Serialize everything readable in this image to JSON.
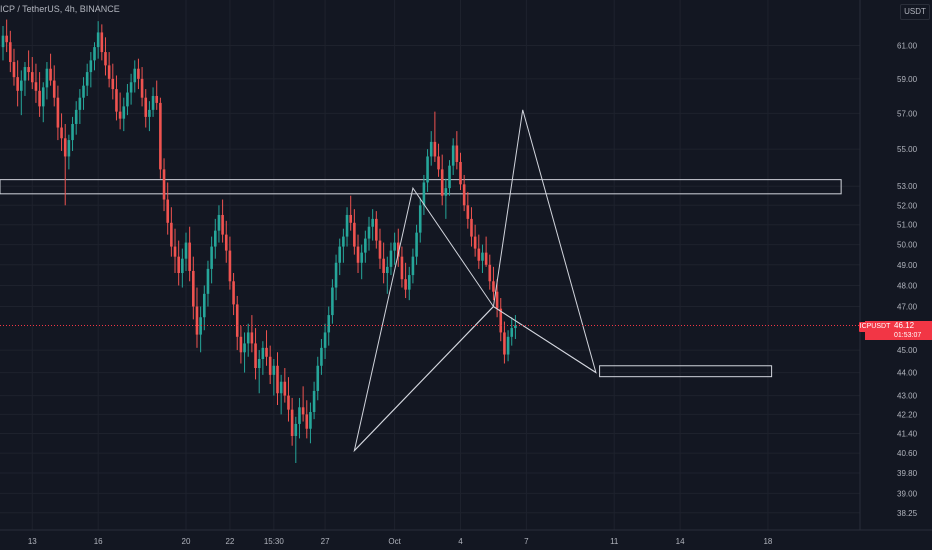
{
  "header": {
    "title": "ICP / TetherUS, 4h, BINANCE"
  },
  "axis_unit": "USDT",
  "colors": {
    "background": "#131722",
    "up": "#26a69a",
    "down": "#ef5350",
    "axis_text": "#b2b5be",
    "price_line": "#f23645",
    "drawing": "#d1d4dc"
  },
  "chart_data": {
    "type": "candlestick",
    "symbol": "ICPUSDT",
    "last_price": "46.12",
    "countdown": "01:53:07",
    "y_scale": "log",
    "ylim": [
      37.9,
      63.2
    ],
    "y_ticks": [
      "61.00",
      "59.00",
      "57.00",
      "55.00",
      "53.00",
      "52.00",
      "51.00",
      "50.00",
      "49.00",
      "48.00",
      "47.00",
      "45.00",
      "44.00",
      "43.00",
      "42.20",
      "41.40",
      "40.60",
      "39.80",
      "39.00",
      "38.25"
    ],
    "x_ticks": [
      {
        "label": "13",
        "i": 8
      },
      {
        "label": "16",
        "i": 26
      },
      {
        "label": "20",
        "i": 50
      },
      {
        "label": "22",
        "i": 62
      },
      {
        "label": "15:30",
        "i": 74
      },
      {
        "label": "27",
        "i": 88
      },
      {
        "label": "Oct",
        "i": 107
      },
      {
        "label": "4",
        "i": 125
      },
      {
        "label": "7",
        "i": 143
      },
      {
        "label": "11",
        "i": 167
      },
      {
        "label": "14",
        "i": 185
      },
      {
        "label": "18",
        "i": 209
      }
    ],
    "candles": [
      [
        60.9,
        62.2,
        60.1,
        61.6
      ],
      [
        61.6,
        62.6,
        60.6,
        61.2
      ],
      [
        61.2,
        61.9,
        59.4,
        60.0
      ],
      [
        60.0,
        60.8,
        58.6,
        59.1
      ],
      [
        59.1,
        60.1,
        57.4,
        58.3
      ],
      [
        58.3,
        59.5,
        56.9,
        58.9
      ],
      [
        58.9,
        60.0,
        58.0,
        59.7
      ],
      [
        59.7,
        60.7,
        58.9,
        59.4
      ],
      [
        59.4,
        60.3,
        58.4,
        58.8
      ],
      [
        58.8,
        59.9,
        57.6,
        58.3
      ],
      [
        58.3,
        59.4,
        56.8,
        57.4
      ],
      [
        57.4,
        58.8,
        56.5,
        58.5
      ],
      [
        58.5,
        60.0,
        57.8,
        59.6
      ],
      [
        59.6,
        60.5,
        58.6,
        58.9
      ],
      [
        58.9,
        59.8,
        57.4,
        57.9
      ],
      [
        57.9,
        58.6,
        55.5,
        56.2
      ],
      [
        56.2,
        57.0,
        54.9,
        55.6
      ],
      [
        55.6,
        56.4,
        52.0,
        54.6
      ],
      [
        54.6,
        55.8,
        53.9,
        55.5
      ],
      [
        55.5,
        56.8,
        54.9,
        56.4
      ],
      [
        56.4,
        57.7,
        55.8,
        57.2
      ],
      [
        57.2,
        58.4,
        56.4,
        57.9
      ],
      [
        57.9,
        59.1,
        57.2,
        58.6
      ],
      [
        58.6,
        59.9,
        58.0,
        59.4
      ],
      [
        59.4,
        60.6,
        58.5,
        60.1
      ],
      [
        60.1,
        61.2,
        59.5,
        60.9
      ],
      [
        60.9,
        62.5,
        60.2,
        61.8
      ],
      [
        61.8,
        62.3,
        60.1,
        60.6
      ],
      [
        60.6,
        61.5,
        59.2,
        59.8
      ],
      [
        59.8,
        60.6,
        58.5,
        59.0
      ],
      [
        59.0,
        59.9,
        57.8,
        58.4
      ],
      [
        58.4,
        59.2,
        56.6,
        57.1
      ],
      [
        57.1,
        58.2,
        56.1,
        56.7
      ],
      [
        56.7,
        57.9,
        56.0,
        57.4
      ],
      [
        57.4,
        58.7,
        56.9,
        58.2
      ],
      [
        58.2,
        59.3,
        57.5,
        58.8
      ],
      [
        58.8,
        60.1,
        58.2,
        59.6
      ],
      [
        59.6,
        60.2,
        58.4,
        59.0
      ],
      [
        59.0,
        59.7,
        57.4,
        57.9
      ],
      [
        57.9,
        58.4,
        56.2,
        56.8
      ],
      [
        56.8,
        57.7,
        56.0,
        57.2
      ],
      [
        57.2,
        58.5,
        56.8,
        58.0
      ],
      [
        58.0,
        58.9,
        57.2,
        57.6
      ],
      [
        57.6,
        57.9,
        53.4,
        53.9
      ],
      [
        53.9,
        54.5,
        51.7,
        52.3
      ],
      [
        52.3,
        53.2,
        50.5,
        51.1
      ],
      [
        51.1,
        51.9,
        49.4,
        49.9
      ],
      [
        49.9,
        50.8,
        48.6,
        49.4
      ],
      [
        49.4,
        50.2,
        48.0,
        48.6
      ],
      [
        48.6,
        49.8,
        47.9,
        49.3
      ],
      [
        49.3,
        50.6,
        48.7,
        50.1
      ],
      [
        50.1,
        50.9,
        48.2,
        48.7
      ],
      [
        48.7,
        49.4,
        46.4,
        47.0
      ],
      [
        47.0,
        47.9,
        45.1,
        45.7
      ],
      [
        45.7,
        47.0,
        44.9,
        46.5
      ],
      [
        46.5,
        48.0,
        45.9,
        47.6
      ],
      [
        47.6,
        49.2,
        47.0,
        48.8
      ],
      [
        48.8,
        50.4,
        48.1,
        49.9
      ],
      [
        49.9,
        51.3,
        49.3,
        50.7
      ],
      [
        50.7,
        52.0,
        50.1,
        51.5
      ],
      [
        51.5,
        52.3,
        50.1,
        50.5
      ],
      [
        50.5,
        51.2,
        49.1,
        49.7
      ],
      [
        49.7,
        50.4,
        47.8,
        48.2
      ],
      [
        48.2,
        48.6,
        46.6,
        47.1
      ],
      [
        47.1,
        47.5,
        45.0,
        45.6
      ],
      [
        45.6,
        46.1,
        44.4,
        44.9
      ],
      [
        44.9,
        45.8,
        44.0,
        45.3
      ],
      [
        45.3,
        46.2,
        44.7,
        45.8
      ],
      [
        45.8,
        46.6,
        44.9,
        45.3
      ],
      [
        45.3,
        46.0,
        43.7,
        44.2
      ],
      [
        44.2,
        45.0,
        43.1,
        44.6
      ],
      [
        44.6,
        45.4,
        43.9,
        45.1
      ],
      [
        45.1,
        45.9,
        44.3,
        44.7
      ],
      [
        44.7,
        45.2,
        43.5,
        43.9
      ],
      [
        43.9,
        44.6,
        43.0,
        44.3
      ],
      [
        44.3,
        44.9,
        42.6,
        43.1
      ],
      [
        43.1,
        43.9,
        42.2,
        43.6
      ],
      [
        43.6,
        44.2,
        42.7,
        43.0
      ],
      [
        43.0,
        43.8,
        41.9,
        42.4
      ],
      [
        42.4,
        42.9,
        40.9,
        41.3
      ],
      [
        41.3,
        42.1,
        40.2,
        41.8
      ],
      [
        41.8,
        42.9,
        41.2,
        42.5
      ],
      [
        42.5,
        43.4,
        41.9,
        42.2
      ],
      [
        42.2,
        42.8,
        41.2,
        41.6
      ],
      [
        41.6,
        42.7,
        41.0,
        42.3
      ],
      [
        42.3,
        43.6,
        42.0,
        43.2
      ],
      [
        43.2,
        44.7,
        42.8,
        44.3
      ],
      [
        44.3,
        45.5,
        43.9,
        45.1
      ],
      [
        45.1,
        46.2,
        44.6,
        45.8
      ],
      [
        45.8,
        47.0,
        45.2,
        46.6
      ],
      [
        46.6,
        48.3,
        46.2,
        47.9
      ],
      [
        47.9,
        49.5,
        47.3,
        49.1
      ],
      [
        49.1,
        50.3,
        48.5,
        49.9
      ],
      [
        49.9,
        50.8,
        49.1,
        50.4
      ],
      [
        50.4,
        51.9,
        49.9,
        51.5
      ],
      [
        51.5,
        52.5,
        50.7,
        51.1
      ],
      [
        51.1,
        51.8,
        49.5,
        49.9
      ],
      [
        49.9,
        50.5,
        48.6,
        49.1
      ],
      [
        49.1,
        50.0,
        48.3,
        49.6
      ],
      [
        49.6,
        50.7,
        49.1,
        50.3
      ],
      [
        50.3,
        51.4,
        49.7,
        50.9
      ],
      [
        50.9,
        51.8,
        50.2,
        51.3
      ],
      [
        51.3,
        51.7,
        49.8,
        50.2
      ],
      [
        50.2,
        50.8,
        48.8,
        49.3
      ],
      [
        49.3,
        50.1,
        48.1,
        48.6
      ],
      [
        48.6,
        49.4,
        47.6,
        48.9
      ],
      [
        48.9,
        50.1,
        48.5,
        49.7
      ],
      [
        49.7,
        50.6,
        49.0,
        50.1
      ],
      [
        50.1,
        50.8,
        48.9,
        49.4
      ],
      [
        49.4,
        49.9,
        47.9,
        48.3
      ],
      [
        48.3,
        49.1,
        47.4,
        47.8
      ],
      [
        47.8,
        48.9,
        47.3,
        48.5
      ],
      [
        48.5,
        49.8,
        48.1,
        49.4
      ],
      [
        49.4,
        51.0,
        49.0,
        50.6
      ],
      [
        50.6,
        52.4,
        50.1,
        52.0
      ],
      [
        52.0,
        53.6,
        51.5,
        53.2
      ],
      [
        53.2,
        55.0,
        52.7,
        54.6
      ],
      [
        54.6,
        56.0,
        54.1,
        55.4
      ],
      [
        55.4,
        57.1,
        54.3,
        54.6
      ],
      [
        54.6,
        55.3,
        53.5,
        53.9
      ],
      [
        53.9,
        54.7,
        52.0,
        52.5
      ],
      [
        52.5,
        53.4,
        51.3,
        52.9
      ],
      [
        52.9,
        54.4,
        52.5,
        54.1
      ],
      [
        54.1,
        55.6,
        53.6,
        55.2
      ],
      [
        55.2,
        56.0,
        53.9,
        54.3
      ],
      [
        54.3,
        54.8,
        52.8,
        53.1
      ],
      [
        53.1,
        53.6,
        51.7,
        52.0
      ],
      [
        52.0,
        52.7,
        50.8,
        51.3
      ],
      [
        51.3,
        51.9,
        49.9,
        50.4
      ],
      [
        50.4,
        51.0,
        49.4,
        49.8
      ],
      [
        49.8,
        50.5,
        48.8,
        49.2
      ],
      [
        49.2,
        50.0,
        48.6,
        49.6
      ],
      [
        49.6,
        50.4,
        48.9,
        49.0
      ],
      [
        49.0,
        49.5,
        47.8,
        48.2
      ],
      [
        48.2,
        48.9,
        47.3,
        47.7
      ],
      [
        47.7,
        48.3,
        46.5,
        46.9
      ],
      [
        46.9,
        47.4,
        45.4,
        45.8
      ],
      [
        45.8,
        46.3,
        44.4,
        44.8
      ],
      [
        44.8,
        45.9,
        44.5,
        45.6
      ],
      [
        45.6,
        46.5,
        45.2,
        46.0
      ],
      [
        46.0,
        46.6,
        45.5,
        46.12
      ]
    ],
    "horizontal_lines": [
      {
        "y": 46.12,
        "label": "last price"
      }
    ],
    "zones": [
      {
        "y1": 52.6,
        "y2": 53.35,
        "x_from": 0,
        "x_to": 229
      },
      {
        "y1": 43.82,
        "y2": 44.3,
        "x_from": 163,
        "x_to": 210
      }
    ],
    "pattern_points": [
      {
        "i": 96,
        "y": 40.7
      },
      {
        "i": 112,
        "y": 52.9
      },
      {
        "i": 134,
        "y": 47.0
      },
      {
        "i": 142,
        "y": 57.2
      },
      {
        "i": 162,
        "y": 44.0
      }
    ]
  }
}
